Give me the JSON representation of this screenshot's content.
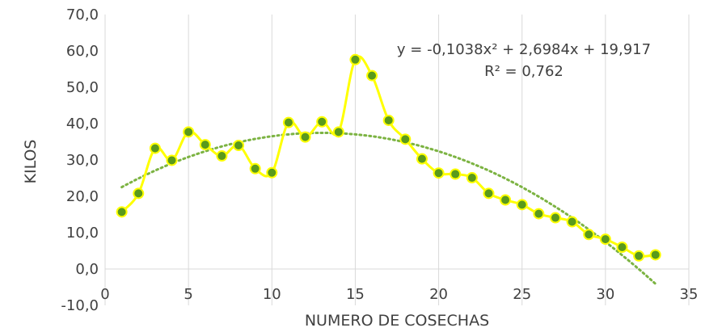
{
  "chart_data": {
    "type": "scatter",
    "xlabel": "NUMERO DE COSECHAS",
    "ylabel": "KILOS",
    "xlim": [
      0,
      35
    ],
    "ylim": [
      -10,
      70
    ],
    "x_ticks": [
      0,
      5,
      10,
      15,
      20,
      25,
      30,
      35
    ],
    "y_ticks": [
      -10,
      0,
      10,
      20,
      30,
      40,
      50,
      60,
      70
    ],
    "y_tick_labels": [
      "-10,0",
      "0,0",
      "10,0",
      "20,0",
      "30,0",
      "40,0",
      "50,0",
      "60,0",
      "70,0"
    ],
    "grid": "vertical",
    "series": [
      {
        "x": [
          1,
          2,
          3,
          4,
          5,
          6,
          7,
          8,
          9,
          10,
          11,
          12,
          13,
          14,
          15,
          16,
          17,
          18,
          19,
          20,
          21,
          22,
          23,
          24,
          25,
          26,
          27,
          28,
          29,
          30,
          31,
          32,
          33
        ],
        "y": [
          15.7,
          20.8,
          33.2,
          29.9,
          37.7,
          34.2,
          31.1,
          34.0,
          27.6,
          26.5,
          40.3,
          36.3,
          40.5,
          37.7,
          57.6,
          53.2,
          40.9,
          35.7,
          30.3,
          26.4,
          26.1,
          25.1,
          20.8,
          19.0,
          17.7,
          15.2,
          14.1,
          13.0,
          9.5,
          8.2,
          6.0,
          3.6,
          3.9
        ],
        "line_color": "#ffff00",
        "marker_color": "#5a9a1c"
      }
    ],
    "trendline": {
      "type": "polynomial",
      "coefficients": [
        -0.1038,
        2.6984,
        19.917
      ],
      "color": "#7cb342",
      "equation": "y = -0,1038x² + 2,6984x + 19,917",
      "r2": "R² = 0,762"
    }
  }
}
